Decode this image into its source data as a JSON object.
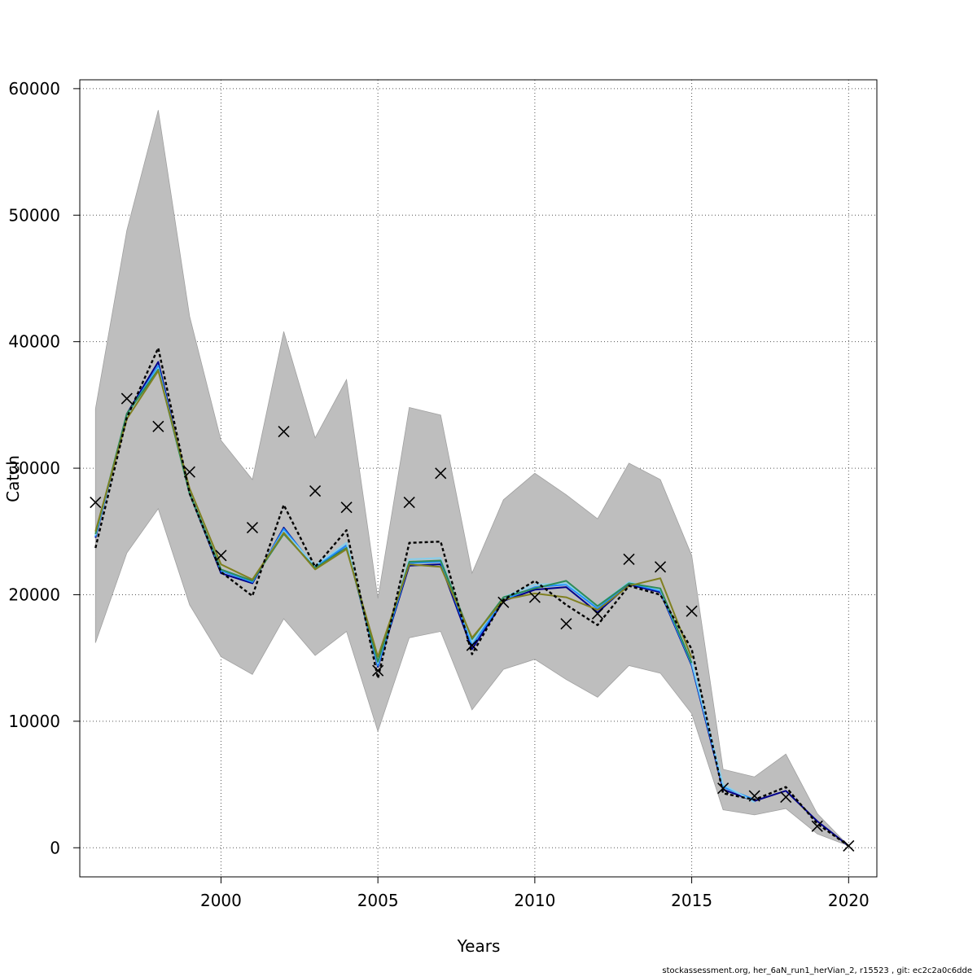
{
  "chart_data": {
    "type": "line",
    "xlabel": "Years",
    "ylabel": "Catch",
    "xlim": [
      1995.5,
      2020.9
    ],
    "ylim": [
      -2300,
      60700
    ],
    "x_ticks": [
      2000,
      2005,
      2010,
      2015,
      2020
    ],
    "y_ticks": [
      0,
      10000,
      20000,
      30000,
      40000,
      50000,
      60000
    ],
    "grid": true,
    "years": [
      1996,
      1997,
      1998,
      1999,
      2000,
      2001,
      2002,
      2003,
      2004,
      2005,
      2006,
      2007,
      2008,
      2009,
      2010,
      2011,
      2012,
      2013,
      2014,
      2015,
      2016,
      2017,
      2018,
      2019,
      2020
    ],
    "band": {
      "color": "#bebebe",
      "upper": [
        34700,
        48800,
        58300,
        42000,
        32200,
        29100,
        40800,
        32400,
        37000,
        19700,
        34800,
        34200,
        21700,
        27500,
        29600,
        27900,
        26000,
        30400,
        29100,
        23100,
        6200,
        5600,
        7400,
        2700,
        150
      ],
      "lower": [
        16200,
        23300,
        26800,
        19200,
        15100,
        13700,
        18100,
        15200,
        17100,
        9200,
        16600,
        17100,
        10900,
        14100,
        14900,
        13300,
        11900,
        14400,
        13800,
        10600,
        3000,
        2600,
        3100,
        1100,
        150
      ]
    },
    "observed": {
      "marker": "x",
      "color": "#000000",
      "values": [
        27300,
        35500,
        33300,
        29700,
        23100,
        25300,
        32900,
        28200,
        26900,
        14000,
        27300,
        29600,
        16000,
        19400,
        19800,
        17700,
        18500,
        22800,
        22200,
        18700,
        4700,
        4100,
        4000,
        1700,
        150
      ]
    },
    "series": [
      {
        "name": "",
        "color": "#000000",
        "style": "dashed",
        "width": 2.4,
        "values": [
          23700,
          34000,
          39500,
          28000,
          21800,
          19900,
          27100,
          22200,
          25100,
          13400,
          24100,
          24200,
          15300,
          19600,
          21100,
          19200,
          17600,
          20700,
          20000,
          15700,
          4300,
          3800,
          4800,
          1900,
          150
        ]
      },
      {
        "name": "",
        "color": "#00008b",
        "style": "solid",
        "width": 2,
        "values": [
          24500,
          34300,
          38400,
          28000,
          21700,
          20900,
          25300,
          22100,
          23900,
          14300,
          22300,
          22400,
          15700,
          19500,
          20400,
          20600,
          18600,
          20800,
          20200,
          14400,
          4600,
          3700,
          4500,
          2100,
          150
        ]
      },
      {
        "name": "",
        "color": "#1e90ff",
        "style": "solid",
        "width": 2,
        "values": [
          24600,
          34200,
          38100,
          28000,
          21900,
          21000,
          25200,
          22200,
          23900,
          14400,
          22500,
          22600,
          16000,
          19600,
          20600,
          20800,
          18900,
          20900,
          20300,
          14500,
          4800,
          3800,
          null,
          null,
          null
        ]
      },
      {
        "name": "",
        "color": "#87ceeb",
        "style": "solid",
        "width": 2,
        "values": [
          24700,
          34200,
          37900,
          28100,
          22000,
          21100,
          25000,
          22300,
          24100,
          14600,
          22800,
          22900,
          16300,
          19800,
          20800,
          20900,
          19100,
          21000,
          20400,
          14700,
          5000,
          3600,
          null,
          null,
          null
        ]
      },
      {
        "name": "",
        "color": "#2e8b57",
        "style": "solid",
        "width": 2,
        "values": [
          24800,
          34300,
          37800,
          28000,
          22000,
          21100,
          24800,
          22100,
          23700,
          14700,
          22600,
          22700,
          16500,
          19800,
          20500,
          21100,
          19100,
          20900,
          20500,
          14600,
          null,
          null,
          null,
          null,
          null
        ]
      },
      {
        "name": "",
        "color": "#808020",
        "style": "solid",
        "width": 2,
        "values": [
          25000,
          33900,
          37700,
          28400,
          22400,
          21200,
          24900,
          22000,
          23600,
          15100,
          22400,
          22200,
          16600,
          19600,
          20100,
          19800,
          18800,
          20700,
          21300,
          15000,
          null,
          null,
          null,
          null,
          null
        ]
      }
    ]
  },
  "footer": {
    "text": "stockassessment.org, her_6aN_run1_herVian_2, r15523 , git: ec2c2a0c6dde"
  }
}
